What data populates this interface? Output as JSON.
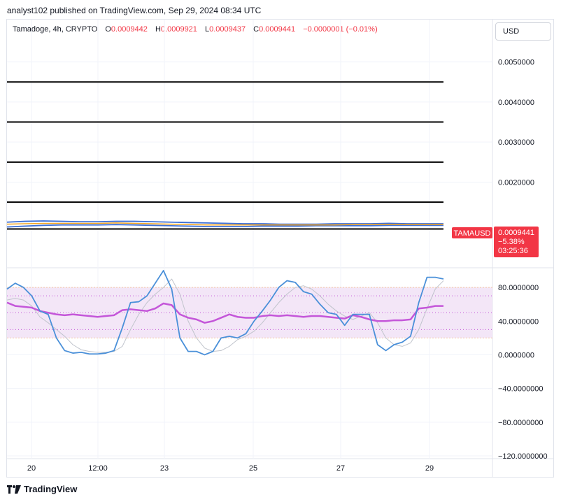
{
  "header": {
    "publisher_line": "analyst102 published on TradingView.com, Sep 29, 2024 08:34 UTC"
  },
  "legend": {
    "symbol": "Tamadoge, 4h, CRYPTO",
    "open_label": "O",
    "open": "0.0009442",
    "high_label": "H",
    "high": "0.0009921",
    "low_label": "L",
    "low": "0.0009437",
    "close_label": "C",
    "close": "0.0009441",
    "change": "−0.0000001 (−0.01%)"
  },
  "currency": "USD",
  "price_badge": {
    "symbol": "TAMAUSD",
    "price": "0.0009441",
    "change_pct": "−5.38%",
    "countdown": "03:25:36",
    "color": "#f23645"
  },
  "footer": {
    "brand": "TradingView"
  },
  "colors": {
    "stoch_k": "#4a90d9",
    "stoch_d": "#c0c4cc",
    "rsi": "#c456d9",
    "band_fill": "#f3e6f7",
    "bb": "#3d6fd6",
    "ma": "#f5a623"
  },
  "chart_data": [
    {
      "type": "line",
      "title": "Tamadoge, 4h, CRYPTO",
      "ylim": [
        0,
        0.0055
      ],
      "y_ticks": [
        "0.0050000",
        "0.0040000",
        "0.0030000",
        "0.0020000"
      ],
      "y_tick_values": [
        0.005,
        0.004,
        0.003,
        0.002
      ],
      "x_ticks": [
        "20",
        "12:00",
        "23",
        "25",
        "27",
        "29"
      ],
      "horizontal_levels": [
        0.0045,
        0.0035,
        0.0025,
        0.0015,
        0.00083
      ],
      "series": [
        {
          "values": [
            0.001,
            0.00102,
            0.00103,
            0.00102,
            0.00101,
            0.00101,
            0.00102,
            0.00102,
            0.00101,
            0.001,
            0.00099,
            0.00098,
            0.00097,
            0.00096,
            0.00096,
            0.00095,
            0.00095,
            0.00095,
            0.00096,
            0.00096,
            0.00096,
            0.00097,
            0.00096,
            0.00096,
            0.00096
          ]
        },
        {
          "values": [
            0.00088,
            0.0009,
            0.00092,
            0.00093,
            0.00093,
            0.00093,
            0.00094,
            0.00093,
            0.00092,
            0.00091,
            0.0009,
            0.00089,
            0.00089,
            0.00089,
            0.0009,
            0.0009,
            0.0009,
            0.00091,
            0.00091,
            0.00091,
            0.00091,
            0.00092,
            0.00092,
            0.00092,
            0.00092
          ]
        },
        {
          "values": [
            0.00095,
            0.00096,
            0.00097,
            0.00097,
            0.00097,
            0.00097,
            0.00098,
            0.00097,
            0.00096,
            0.00095,
            0.00094,
            0.00093,
            0.00093,
            0.00093,
            0.00093,
            0.00093,
            0.00093,
            0.00093,
            0.00093,
            0.00094,
            0.00094,
            0.00094,
            0.00094,
            0.00094,
            0.00094
          ]
        }
      ]
    },
    {
      "type": "line",
      "ylim": [
        -120,
        100
      ],
      "y_ticks": [
        "80.0000000",
        "40.0000000",
        "0.0000000",
        "−40.0000000",
        "−80.0000000",
        "−120.0000000"
      ],
      "y_tick_values": [
        80,
        40,
        0,
        -40,
        -80,
        -120
      ],
      "band": [
        20,
        80
      ],
      "guides": [
        70,
        50,
        30
      ],
      "series": [
        {
          "values": [
            78,
            85,
            80,
            70,
            52,
            48,
            20,
            5,
            2,
            3,
            1,
            1,
            2,
            5,
            32,
            62,
            63,
            70,
            85,
            100,
            78,
            20,
            4,
            4,
            0,
            4,
            20,
            22,
            20,
            25,
            40,
            52,
            65,
            80,
            88,
            86,
            75,
            72,
            60,
            50,
            48,
            35,
            48,
            48,
            48,
            12,
            5,
            12,
            15,
            22,
            62,
            92,
            92,
            90
          ]
        },
        {
          "values": [
            62,
            58,
            57,
            56,
            52,
            50,
            48,
            47,
            48,
            47,
            46,
            45,
            46,
            47,
            53,
            54,
            53,
            52,
            55,
            61,
            59,
            48,
            44,
            42,
            38,
            40,
            44,
            48,
            45,
            44,
            44,
            46,
            47,
            46,
            47,
            46,
            45,
            46,
            46,
            45,
            44,
            43,
            47,
            45,
            42,
            40,
            40,
            41,
            41,
            42,
            55,
            56,
            58,
            58
          ]
        },
        {
          "values": [
            65,
            67,
            65,
            58,
            45,
            38,
            30,
            22,
            12,
            6,
            4,
            3,
            3,
            4,
            10,
            30,
            48,
            62,
            72,
            80,
            90,
            72,
            40,
            20,
            8,
            4,
            5,
            10,
            18,
            22,
            28,
            38,
            50,
            62,
            72,
            80,
            82,
            78,
            70,
            60,
            52,
            46,
            42,
            46,
            50,
            38,
            20,
            12,
            10,
            14,
            30,
            55,
            78,
            88
          ]
        }
      ]
    }
  ]
}
